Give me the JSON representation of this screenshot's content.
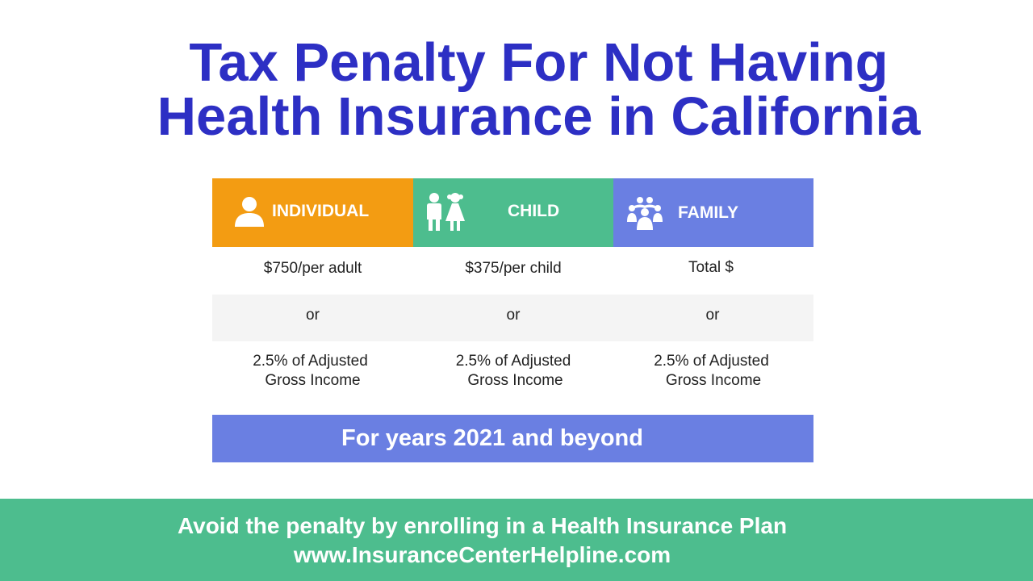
{
  "title": {
    "line1": "Tax Penalty For Not Having",
    "line2": "Health Insurance in California"
  },
  "table": {
    "columns": [
      {
        "label": "INDIVIDUAL",
        "icon": "person-icon",
        "color": "#f39c12"
      },
      {
        "label": "CHILD",
        "icon": "children-icon",
        "color": "#4dbd8e"
      },
      {
        "label": "FAMILY",
        "icon": "family-icon",
        "color": "#6a7fe2"
      }
    ],
    "rows": [
      [
        "$750/per adult",
        "$375/per child",
        "Total $"
      ],
      [
        "or",
        "or",
        "or"
      ],
      [
        [
          "2.5% of Adjusted",
          "Gross Income"
        ],
        [
          "2.5% of Adjusted",
          "Gross Income"
        ],
        [
          "2.5% of Adjusted",
          "Gross Income"
        ]
      ]
    ]
  },
  "years_note": "For years 2021 and beyond",
  "footer": {
    "line1": "Avoid the penalty by enrolling in a Health Insurance Plan",
    "line2": "www.InsuranceCenterHelpline.com"
  },
  "colors": {
    "title": "#2d2fc4",
    "orange": "#f39c12",
    "green": "#4dbd8e",
    "blue": "#6a7fe2",
    "stripe": "#f4f4f4"
  }
}
